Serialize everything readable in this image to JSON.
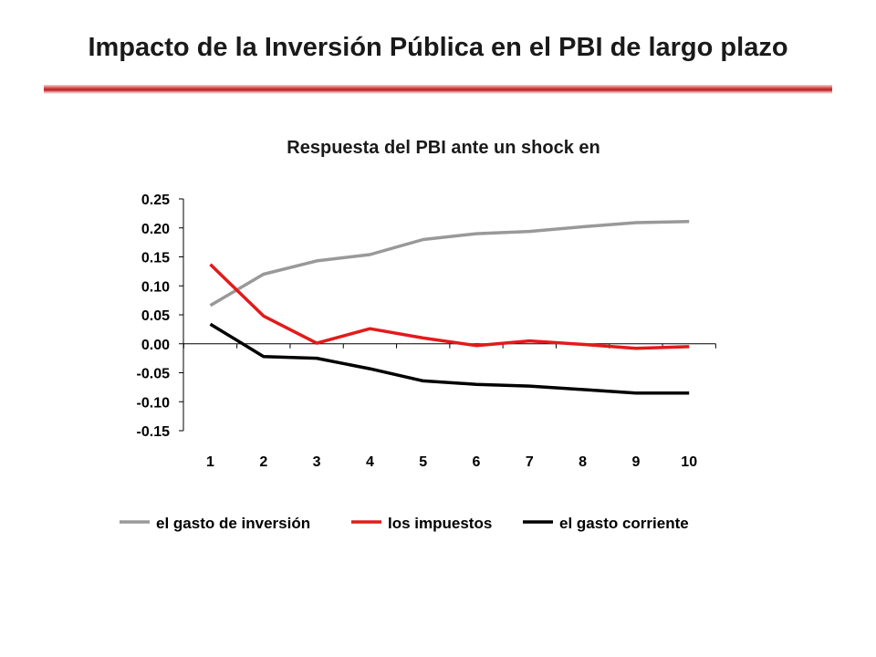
{
  "slide": {
    "title": "Impacto de la Inversión Pública en el PBI de largo plazo"
  },
  "chart_data": {
    "type": "line",
    "title": "Respuesta del PBI ante un shock en",
    "xlabel": "",
    "ylabel": "",
    "x": [
      1,
      2,
      3,
      4,
      5,
      6,
      7,
      8,
      9,
      10
    ],
    "ylim": [
      -0.15,
      0.25
    ],
    "yticks": [
      "0.25",
      "0.20",
      "0.15",
      "0.10",
      "0.05",
      "0.00",
      "-0.05",
      "-0.10",
      "-0.15"
    ],
    "ytick_values": [
      0.25,
      0.2,
      0.15,
      0.1,
      0.05,
      0.0,
      -0.05,
      -0.1,
      -0.15
    ],
    "grid": false,
    "legend_position": "bottom",
    "series": [
      {
        "name": "el gasto de inversión",
        "color": "#999999",
        "values": [
          0.066,
          0.12,
          0.143,
          0.154,
          0.18,
          0.19,
          0.194,
          0.202,
          0.209,
          0.211
        ]
      },
      {
        "name": "los impuestos",
        "color": "#e31a1a",
        "values": [
          0.137,
          0.048,
          0.001,
          0.026,
          0.01,
          -0.003,
          0.005,
          -0.001,
          -0.008,
          -0.005
        ]
      },
      {
        "name": "el gasto corriente",
        "color": "#000000",
        "values": [
          0.034,
          -0.022,
          -0.025,
          -0.043,
          -0.064,
          -0.07,
          -0.073,
          -0.079,
          -0.085,
          -0.085
        ]
      }
    ]
  }
}
